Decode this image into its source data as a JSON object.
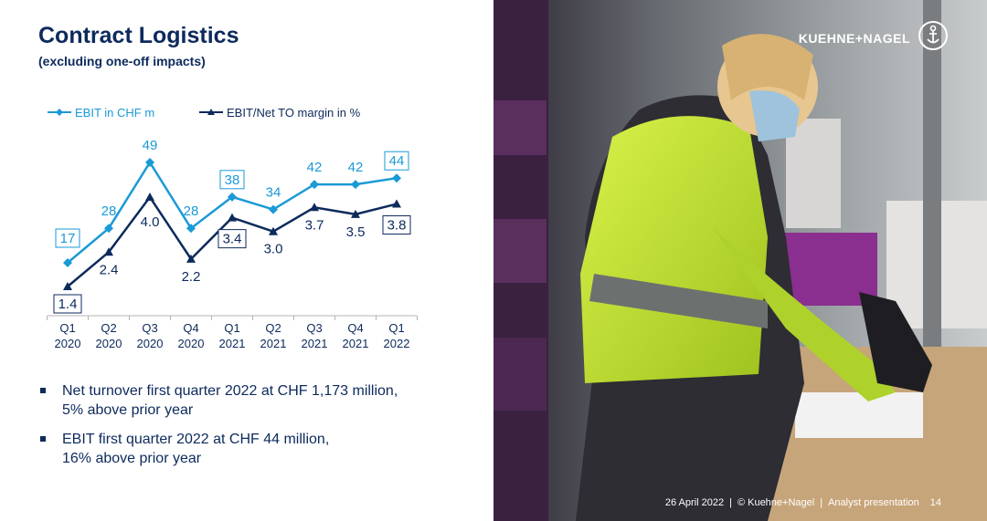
{
  "slide": {
    "title": "Contract Logistics",
    "subtitle": "(excluding one-off impacts)"
  },
  "chart_data": {
    "type": "line",
    "categories": [
      [
        "Q1",
        "2020"
      ],
      [
        "Q2",
        "2020"
      ],
      [
        "Q3",
        "2020"
      ],
      [
        "Q4",
        "2020"
      ],
      [
        "Q1",
        "2021"
      ],
      [
        "Q2",
        "2021"
      ],
      [
        "Q3",
        "2021"
      ],
      [
        "Q4",
        "2021"
      ],
      [
        "Q1",
        "2022"
      ]
    ],
    "series": [
      {
        "name": "EBIT in CHF m",
        "values": [
          17,
          28,
          49,
          28,
          38,
          34,
          42,
          42,
          44
        ],
        "color": "#1a9ad6",
        "marker": "diamond",
        "boxed_labels": [
          0,
          4,
          8
        ]
      },
      {
        "name": "EBIT/Net TO margin in %",
        "values": [
          1.4,
          2.4,
          4.0,
          2.2,
          3.4,
          3.0,
          3.7,
          3.5,
          3.8
        ],
        "color": "#0d2a5c",
        "marker": "triangle",
        "boxed_labels": [
          0,
          4,
          8
        ]
      }
    ],
    "legend_position": "top-left",
    "grid": false
  },
  "bullets": [
    {
      "line1": "Net turnover first quarter 2022 at CHF 1,173 million,",
      "line2": "5% above prior year"
    },
    {
      "line1": "EBIT first quarter 2022 at CHF 44 million,",
      "line2": "16% above prior year"
    }
  ],
  "logo": {
    "text": "KUEHNE+NAGEL",
    "icon": "anchor-icon"
  },
  "footer": {
    "date": "26 April 2022",
    "copyright": "© Kuehne+Nagel",
    "presentation": "Analyst presentation",
    "page": "14"
  },
  "colors": {
    "navy": "#0d2a5c",
    "light_blue": "#1a9ad6"
  }
}
